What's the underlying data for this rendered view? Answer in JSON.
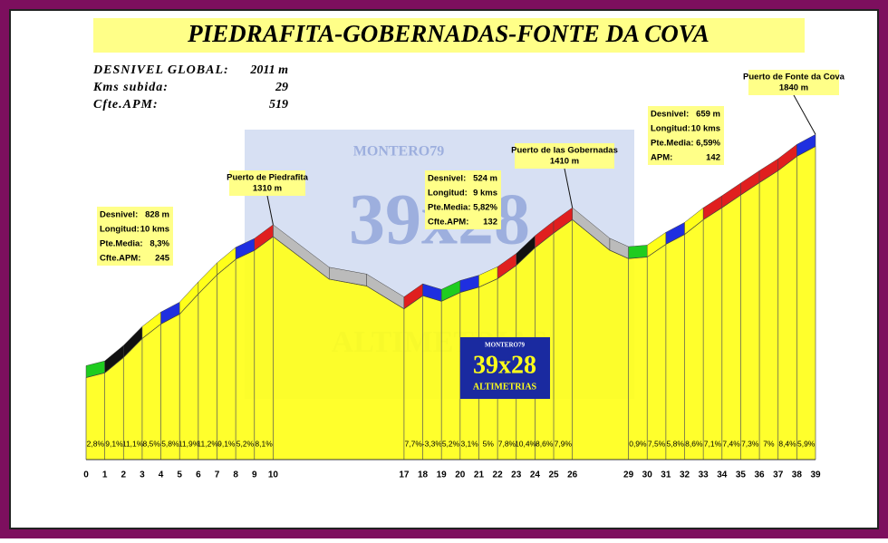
{
  "chart_data": {
    "type": "area",
    "title": "PIEDRAFITA-GOBERNADAS-FONTE DA COVA",
    "stats": [
      [
        "DESNIVEL GLOBAL:",
        "2011 m"
      ],
      [
        "Kms subida:",
        "29"
      ],
      [
        "Cfte.APM:",
        "519"
      ]
    ],
    "x": [
      0,
      1,
      2,
      3,
      4,
      5,
      6,
      7,
      8,
      9,
      10,
      13,
      15,
      17,
      18,
      19,
      20,
      21,
      22,
      23,
      24,
      25,
      26,
      28,
      29,
      30,
      31,
      32,
      33,
      34,
      35,
      36,
      37,
      38,
      39
    ],
    "values": [
      482,
      510,
      601,
      712,
      797,
      855,
      974,
      1086,
      1177,
      1229,
      1310,
      1060,
      1020,
      886,
      963,
      930,
      982,
      1013,
      1063,
      1141,
      1245,
      1331,
      1410,
      1230,
      1181,
      1190,
      1265,
      1323,
      1409,
      1480,
      1554,
      1627,
      1697,
      1781,
      1840
    ],
    "color": "#ffff1a",
    "xlim": [
      0,
      39
    ],
    "ylim": [
      0,
      1900
    ],
    "xticks": [
      0,
      1,
      2,
      3,
      4,
      5,
      6,
      7,
      8,
      9,
      10,
      17,
      18,
      19,
      20,
      21,
      22,
      23,
      24,
      25,
      26,
      29,
      30,
      31,
      32,
      33,
      34,
      35,
      36,
      37,
      38,
      39
    ],
    "segments": {
      "start": [
        0,
        1,
        2,
        3,
        4,
        5,
        6,
        7,
        8,
        9,
        17,
        18,
        19,
        20,
        21,
        22,
        23,
        24,
        25,
        29,
        30,
        31,
        32,
        33,
        34,
        35,
        36,
        37,
        38
      ],
      "end": [
        1,
        2,
        3,
        4,
        5,
        6,
        7,
        8,
        9,
        10,
        18,
        19,
        20,
        21,
        22,
        23,
        24,
        25,
        26,
        30,
        31,
        32,
        33,
        34,
        35,
        36,
        37,
        38,
        39
      ],
      "values": [
        2.8,
        9.1,
        11.1,
        8.5,
        5.8,
        11.9,
        11.2,
        9.1,
        5.2,
        8.1,
        7.7,
        -3.3,
        5.2,
        3.1,
        5,
        7.8,
        10.4,
        8.6,
        7.9,
        0.9,
        7.5,
        5.8,
        8.6,
        7.1,
        7.4,
        7.3,
        7,
        8.4,
        5.9
      ],
      "value_labels": [
        "2,8%",
        "9,1%",
        "11,1%",
        "8,5%",
        "5,8%",
        "11,9%",
        "11,2%",
        "9,1%",
        "5,2%",
        "8,1%",
        "7,7%",
        "-3,3%",
        "5,2%",
        "3,1%",
        "5%",
        "7,8%",
        "10,4%",
        "8,6%",
        "7,9%",
        "0,9%",
        "7,5%",
        "5,8%",
        "8,6%",
        "7,1%",
        "7,4%",
        "7,3%",
        "7%",
        "8,4%",
        "5,9%"
      ],
      "colors": [
        "#1fcc1f",
        "#111111",
        "#111111",
        "#ffff1a",
        "#1f2fe0",
        "#ffff1a",
        "#ffff1a",
        "#ffff1a",
        "#1f2fe0",
        "#e01f1f",
        "#e01f1f",
        "#1f2fe0",
        "#1fcc1f",
        "#1f2fe0",
        "#ffff1a",
        "#e01f1f",
        "#111111",
        "#e01f1f",
        "#e01f1f",
        "#1fcc1f",
        "#ffff1a",
        "#1f2fe0",
        "#ffff1a",
        "#e01f1f",
        "#e01f1f",
        "#e01f1f",
        "#e01f1f",
        "#e01f1f",
        "#1f2fe0"
      ]
    },
    "descent_color": "#bbbbbb",
    "info_boxes": [
      [
        [
          "Desnivel:",
          "828 m"
        ],
        [
          "Longitud:",
          "10 kms"
        ],
        [
          "Pte.Media:",
          "8,3%"
        ],
        [
          "Cfte.APM:",
          "245"
        ]
      ],
      [
        [
          "Desnivel:",
          "524 m"
        ],
        [
          "Longitud:",
          "9 kms"
        ],
        [
          "Pte.Media:",
          "5,82%"
        ],
        [
          "Cfte.APM:",
          "132"
        ]
      ],
      [
        [
          "Desnivel:",
          "659 m"
        ],
        [
          "Longitud:",
          "10 kms"
        ],
        [
          "Pte.Media:",
          "6,59%"
        ],
        [
          "APM:",
          "142"
        ]
      ]
    ],
    "passes": [
      {
        "name": "Puerto de Piedrafita",
        "altitude": "1310 m"
      },
      {
        "name": "Puerto de las Gobernadas",
        "altitude": "1410 m"
      },
      {
        "name": "Puerto de Fonte da Cova",
        "altitude": "1840 m"
      }
    ],
    "watermark": [
      "MONTERO79",
      "39x28",
      "ALTIMETRIAS"
    ],
    "logo": [
      "MONTERO79",
      "39x28",
      "ALTIMETRIAS"
    ]
  }
}
